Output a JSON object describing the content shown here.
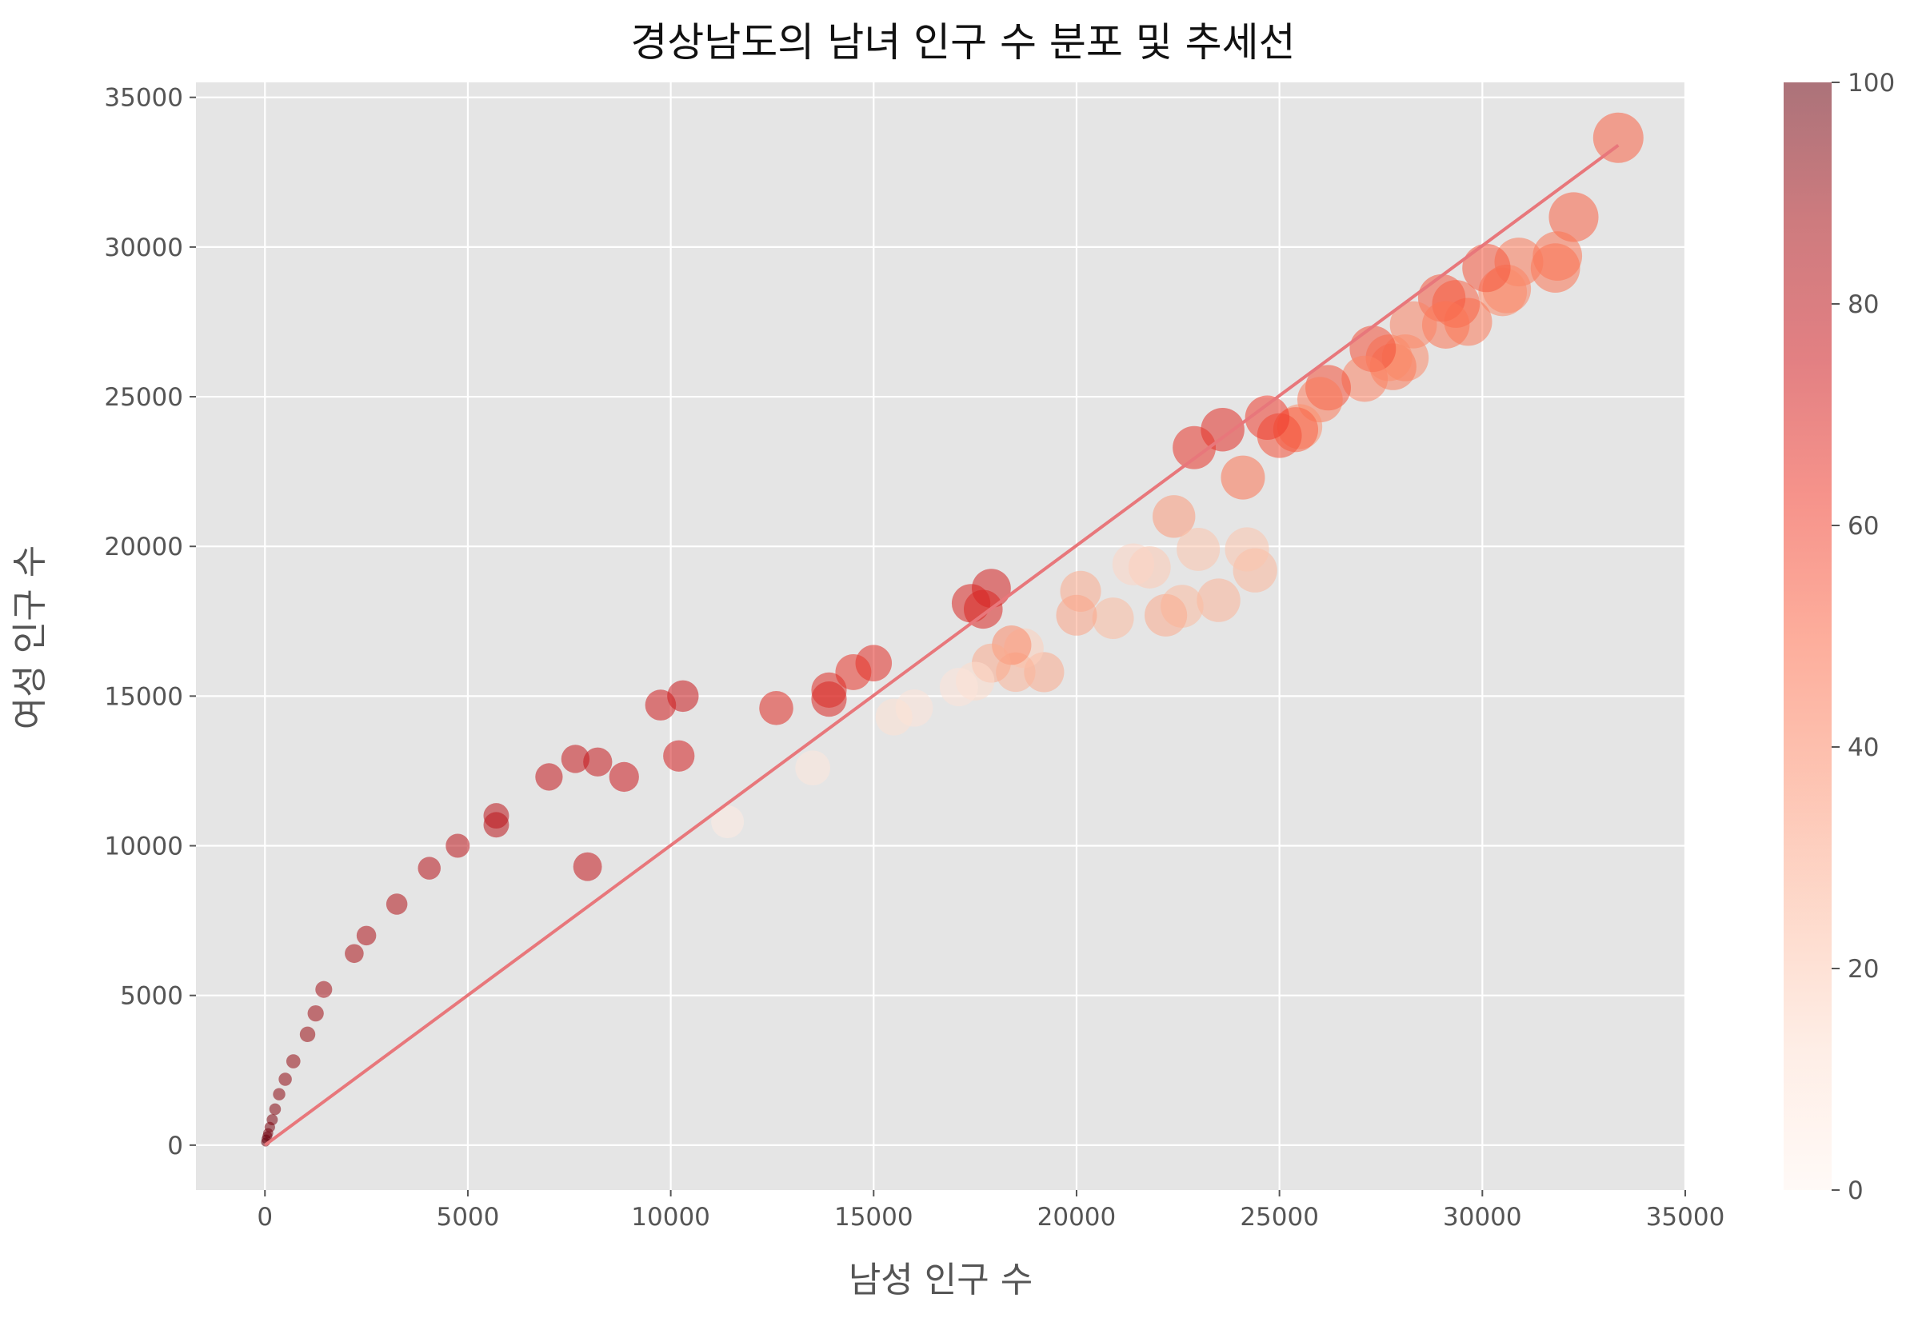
{
  "chart_data": {
    "type": "scatter",
    "title": "경상남도의 남녀 인구 수 분포 및 추세선",
    "xlabel": "남성 인구 수",
    "ylabel": "여성 인구 수",
    "xlim": [
      -1700,
      35000
    ],
    "ylim": [
      -1500,
      35500
    ],
    "xticks": [
      "0",
      "5000",
      "10000",
      "15000",
      "20000",
      "25000",
      "30000",
      "35000"
    ],
    "yticks": [
      "0",
      "5000",
      "10000",
      "15000",
      "20000",
      "25000",
      "30000",
      "35000"
    ],
    "colorbar": {
      "min": 0,
      "max": 100,
      "ticks": [
        "0",
        "20",
        "40",
        "60",
        "80",
        "100"
      ],
      "colormap": "Reds"
    },
    "grid": true,
    "background": "#e5e5e5",
    "trendline": {
      "color": "#e8777b",
      "x": [
        0,
        33350
      ],
      "y": [
        0,
        33400
      ]
    },
    "points": [
      [
        33350,
        33650,
        52
      ],
      [
        32250,
        31000,
        52
      ],
      [
        31850,
        29700,
        47
      ],
      [
        31800,
        29300,
        47
      ],
      [
        30900,
        29500,
        45
      ],
      [
        30600,
        28600,
        42
      ],
      [
        30500,
        28500,
        40
      ],
      [
        30100,
        29300,
        55
      ],
      [
        29650,
        27500,
        45
      ],
      [
        29350,
        28100,
        52
      ],
      [
        29000,
        28300,
        55
      ],
      [
        29100,
        27400,
        47
      ],
      [
        28300,
        27400,
        42
      ],
      [
        28100,
        26300,
        40
      ],
      [
        27800,
        26000,
        45
      ],
      [
        27700,
        26300,
        40
      ],
      [
        27300,
        26600,
        57
      ],
      [
        27100,
        25600,
        42
      ],
      [
        26200,
        25300,
        57
      ],
      [
        26000,
        24900,
        45
      ],
      [
        25500,
        24000,
        38
      ],
      [
        25400,
        23900,
        52
      ],
      [
        25000,
        23700,
        57
      ],
      [
        24700,
        24300,
        62
      ],
      [
        24100,
        22300,
        47
      ],
      [
        23600,
        23900,
        67
      ],
      [
        22900,
        23300,
        65
      ],
      [
        22400,
        21000,
        35
      ],
      [
        24400,
        19200,
        26
      ],
      [
        24200,
        19900,
        22
      ],
      [
        23500,
        18200,
        27
      ],
      [
        23000,
        19900,
        22
      ],
      [
        22600,
        18000,
        25
      ],
      [
        22200,
        17700,
        30
      ],
      [
        21800,
        19300,
        20
      ],
      [
        21400,
        19400,
        16
      ],
      [
        20900,
        17600,
        25
      ],
      [
        20100,
        18500,
        30
      ],
      [
        20000,
        17700,
        32
      ],
      [
        19200,
        15800,
        30
      ],
      [
        18700,
        16600,
        18
      ],
      [
        18500,
        15800,
        27
      ],
      [
        18400,
        16700,
        40
      ],
      [
        17900,
        16100,
        30
      ],
      [
        17500,
        15500,
        14
      ],
      [
        17100,
        15300,
        10
      ],
      [
        16000,
        14600,
        10
      ],
      [
        15500,
        14300,
        12
      ],
      [
        17900,
        18600,
        72
      ],
      [
        17700,
        17900,
        70
      ],
      [
        17400,
        18100,
        70
      ],
      [
        15000,
        16100,
        67
      ],
      [
        14500,
        15800,
        65
      ],
      [
        13900,
        15200,
        68
      ],
      [
        13900,
        14900,
        70
      ],
      [
        12600,
        14600,
        68
      ],
      [
        13500,
        12600,
        8
      ],
      [
        11400,
        10800,
        6
      ],
      [
        10300,
        15000,
        76
      ],
      [
        9750,
        14700,
        74
      ],
      [
        10200,
        13000,
        73
      ],
      [
        8850,
        12300,
        75
      ],
      [
        8200,
        12800,
        77
      ],
      [
        7650,
        12900,
        77
      ],
      [
        7000,
        12300,
        78
      ],
      [
        7950,
        9300,
        78
      ],
      [
        5700,
        11000,
        80
      ],
      [
        5700,
        10700,
        81
      ],
      [
        4750,
        10000,
        81
      ],
      [
        4050,
        9250,
        82
      ],
      [
        3250,
        8050,
        84
      ],
      [
        2500,
        7000,
        85
      ],
      [
        2200,
        6400,
        86
      ],
      [
        1450,
        5200,
        88
      ],
      [
        1250,
        4400,
        89
      ],
      [
        1050,
        3700,
        90
      ],
      [
        700,
        2800,
        91
      ],
      [
        500,
        2200,
        92
      ],
      [
        350,
        1700,
        93
      ],
      [
        250,
        1200,
        94
      ],
      [
        180,
        850,
        95
      ],
      [
        120,
        600,
        96
      ],
      [
        80,
        400,
        97
      ],
      [
        60,
        300,
        98
      ],
      [
        30,
        200,
        99
      ],
      [
        15,
        100,
        100
      ]
    ]
  }
}
